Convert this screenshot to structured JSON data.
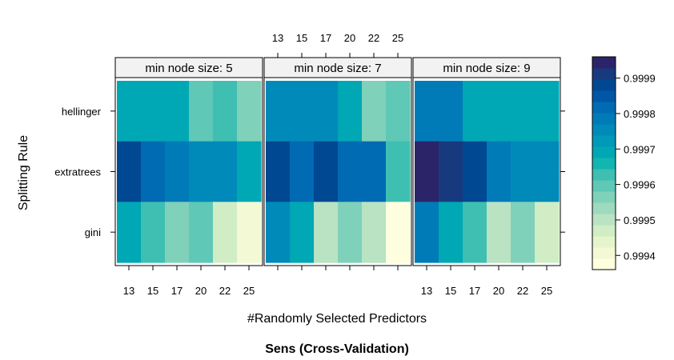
{
  "chart_data": {
    "type": "heatmap",
    "title": "Sens (Cross-Validation)",
    "xlabel": "#Randomly Selected Predictors",
    "ylabel": "Splitting Rule",
    "x_ticks": [
      "13",
      "15",
      "17",
      "20",
      "22",
      "25"
    ],
    "y_categories": [
      "hellinger",
      "extratrees",
      "gini"
    ],
    "panels": [
      {
        "label": "min node size: 5",
        "values": [
          [
            0.9997,
            0.9997,
            0.99969,
            0.99961,
            0.99964,
            0.99956
          ],
          [
            0.99987,
            0.99983,
            0.99978,
            0.99974,
            0.99974,
            0.99969
          ],
          [
            0.99969,
            0.99964,
            0.99955,
            0.9996,
            0.99948,
            0.99942
          ]
        ]
      },
      {
        "label": "min node size: 7",
        "values": [
          [
            0.99974,
            0.99974,
            0.99974,
            0.99969,
            0.99955,
            0.9996
          ],
          [
            0.99987,
            0.99983,
            0.99987,
            0.99983,
            0.99983,
            0.99964
          ],
          [
            0.99974,
            0.99969,
            0.99951,
            0.99955,
            0.99951,
            0.99938
          ]
        ]
      },
      {
        "label": "min node size: 9",
        "values": [
          [
            0.99978,
            0.99978,
            0.9997,
            0.9997,
            0.99969,
            0.99969
          ],
          [
            0.99997,
            0.99992,
            0.99987,
            0.99978,
            0.99974,
            0.99974
          ],
          [
            0.99978,
            0.99969,
            0.99964,
            0.99951,
            0.99955,
            0.99948
          ]
        ]
      }
    ],
    "colorbar": {
      "ticks": [
        "0.9999",
        "0.9998",
        "0.9997",
        "0.9996",
        "0.9995",
        "0.9994"
      ],
      "tick_values": [
        0.9999,
        0.9998,
        0.9997,
        0.9996,
        0.9995,
        0.9994
      ],
      "range": [
        0.99936,
        0.99996
      ],
      "colors": [
        "#FFFFE0",
        "#F3F9D4",
        "#E6F4CC",
        "#D1EDC6",
        "#B9E3C2",
        "#9EDABE",
        "#7FD1BA",
        "#5FC8B6",
        "#3EBFB2",
        "#13B5B0",
        "#00A7B4",
        "#0099B8",
        "#008AB9",
        "#007BB8",
        "#006BB3",
        "#0057A5",
        "#004892",
        "#173A7E",
        "#2C2468"
      ]
    },
    "grid": false,
    "legend": "right"
  }
}
